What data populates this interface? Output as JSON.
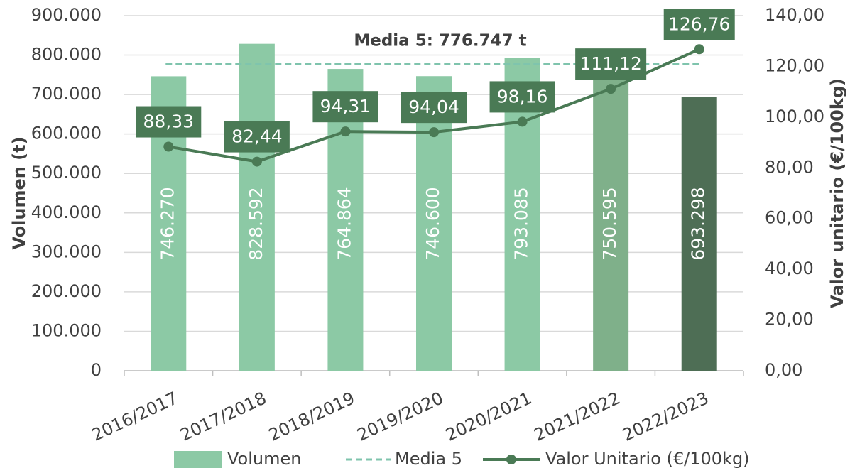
{
  "chart_data": {
    "type": "bar",
    "categories": [
      "2016/2017",
      "2017/2018",
      "2018/2019",
      "2019/2020",
      "2020/2021",
      "2021/2022",
      "2022/2023"
    ],
    "series": [
      {
        "name": "Volumen",
        "color": "#8cc9a5",
        "colors": [
          "#8cc9a5",
          "#8cc9a5",
          "#8cc9a5",
          "#8cc9a5",
          "#8cc9a5",
          "#7fb08a",
          "#4e6e55"
        ],
        "values": [
          746270,
          828592,
          764864,
          746600,
          793085,
          750595,
          693298
        ],
        "value_labels": [
          "746.270",
          "828.592",
          "764.864",
          "746.600",
          "793.085",
          "750.595",
          "693.298"
        ]
      },
      {
        "name": "Valor Unitario (€/100kg)",
        "type": "line",
        "axis": "y2",
        "color": "#4a7a55",
        "values": [
          88.33,
          82.44,
          94.31,
          94.04,
          98.16,
          111.12,
          126.76
        ],
        "value_labels": [
          "88,33",
          "82,44",
          "94,31",
          "94,04",
          "98,16",
          "111,12",
          "126,76"
        ]
      }
    ],
    "reference_line": {
      "name": "Media 5",
      "value": 776747,
      "label": "Media 5: 776.747 t",
      "color": "#7fc4ad"
    },
    "ylabel": "Volumen (t)",
    "y2label": "Valor unitario (€/100kg)",
    "ylim": [
      0,
      900000
    ],
    "yticks": [
      {
        "value": 0,
        "label": "0"
      },
      {
        "value": 100000,
        "label": "100.000"
      },
      {
        "value": 200000,
        "label": "200.000"
      },
      {
        "value": 300000,
        "label": "300.000"
      },
      {
        "value": 400000,
        "label": "400.000"
      },
      {
        "value": 500000,
        "label": "500.000"
      },
      {
        "value": 600000,
        "label": "600.000"
      },
      {
        "value": 700000,
        "label": "700.000"
      },
      {
        "value": 800000,
        "label": "800.000"
      },
      {
        "value": 900000,
        "label": "900.000"
      }
    ],
    "y2lim": [
      0,
      140
    ],
    "y2ticks": [
      {
        "value": 0,
        "label": "0,00"
      },
      {
        "value": 20,
        "label": "20,00"
      },
      {
        "value": 40,
        "label": "40,00"
      },
      {
        "value": 60,
        "label": "60,00"
      },
      {
        "value": 80,
        "label": "80,00"
      },
      {
        "value": 100,
        "label": "100,00"
      },
      {
        "value": 120,
        "label": "120,00"
      },
      {
        "value": 140,
        "label": "140,00"
      }
    ],
    "grid": true,
    "legend": "bottom"
  }
}
